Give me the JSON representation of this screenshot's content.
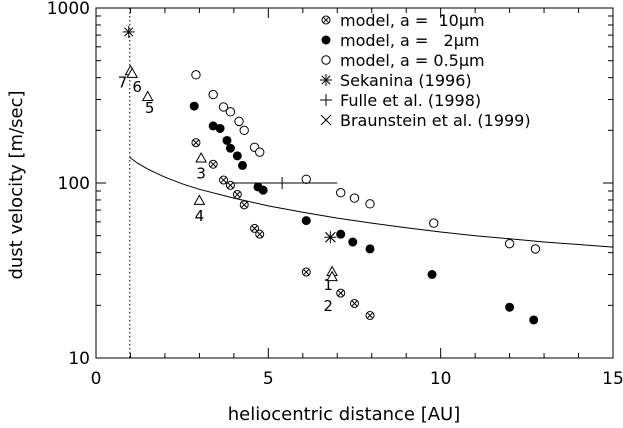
{
  "chart_data": {
    "type": "scatter",
    "title": "",
    "xlabel": "heliocentric distance [AU]",
    "ylabel": "dust velocity [m/sec]",
    "xlim": [
      0,
      15
    ],
    "ylim": [
      10,
      1000
    ],
    "yscale": "log",
    "grid": false,
    "legend_position": "top-right",
    "x_ticks": [
      0,
      5,
      10,
      15
    ],
    "y_ticks": [
      10,
      100,
      1000
    ],
    "vline_x": 0.98,
    "legend": [
      {
        "marker": "circle-cross",
        "text": "model, a =  10μm"
      },
      {
        "marker": "filled-circle",
        "text": "model, a =   2μm"
      },
      {
        "marker": "open-circle",
        "text": "model, a = 0.5μm"
      },
      {
        "marker": "asterisk",
        "text": "Sekanina (1996)"
      },
      {
        "marker": "plus",
        "text": "Fulle et al. (1998)"
      },
      {
        "marker": "x",
        "text": "Braunstein et al. (1999)"
      }
    ],
    "series": [
      {
        "name": "model, a =  10μm",
        "marker": "circle-cross",
        "x": [
          2.9,
          3.4,
          3.7,
          3.9,
          4.1,
          4.3,
          4.6,
          4.75,
          6.1,
          7.1,
          7.5,
          7.95
        ],
        "y": [
          170,
          128,
          104,
          97,
          86,
          75,
          55,
          51,
          31,
          23.5,
          20.5,
          17.5
        ]
      },
      {
        "name": "model, a =   2μm",
        "marker": "filled-circle",
        "x": [
          2.85,
          3.4,
          3.6,
          3.8,
          3.9,
          4.1,
          4.25,
          4.7,
          4.85,
          6.1,
          7.1,
          7.45,
          7.95,
          9.75,
          12.0,
          12.7
        ],
        "y": [
          275,
          212,
          205,
          175,
          158,
          143,
          126,
          95,
          91,
          61,
          51,
          46,
          42,
          30,
          19.5,
          16.5
        ]
      },
      {
        "name": "model, a = 0.5μm",
        "marker": "open-circle",
        "x": [
          2.9,
          3.4,
          3.7,
          3.9,
          4.15,
          4.3,
          4.6,
          4.75,
          6.1,
          7.1,
          7.5,
          7.95,
          9.8,
          12.0,
          12.75
        ],
        "y": [
          415,
          320,
          272,
          255,
          225,
          200,
          160,
          150,
          105,
          88,
          82,
          76,
          59,
          45,
          42
        ]
      },
      {
        "name": "Sekanina (1996)",
        "marker": "asterisk",
        "x": [
          0.95,
          6.8
        ],
        "y": [
          730,
          49
        ]
      },
      {
        "name": "Fulle et al. (1998)",
        "marker": "plus",
        "x": [
          5.4
        ],
        "y": [
          100
        ],
        "x_err": [
          [
            4.0,
            7.0
          ]
        ]
      },
      {
        "name": "Braunstein et al. (1999)",
        "marker": "x",
        "x": [
          6.8
        ],
        "y": [
          49
        ]
      },
      {
        "name": "",
        "marker": "triangle",
        "x": [
          1.0,
          1.05,
          1.5,
          3.05,
          3.0,
          6.85,
          6.85
        ],
        "y": [
          435,
          420,
          310,
          138,
          79,
          31,
          29
        ],
        "labels": [
          "7",
          "6",
          "5",
          "3",
          "4",
          "1",
          "2"
        ]
      }
    ],
    "curve": {
      "x": [
        0.98,
        1.2,
        1.5,
        2,
        2.5,
        3,
        4,
        5,
        6,
        7,
        8,
        9,
        10,
        11,
        12,
        13,
        14,
        15
      ],
      "y": [
        140,
        130,
        120,
        108,
        99,
        92,
        82,
        74,
        68,
        63,
        59,
        55.5,
        52.5,
        50,
        48,
        46,
        44.5,
        43
      ]
    }
  }
}
